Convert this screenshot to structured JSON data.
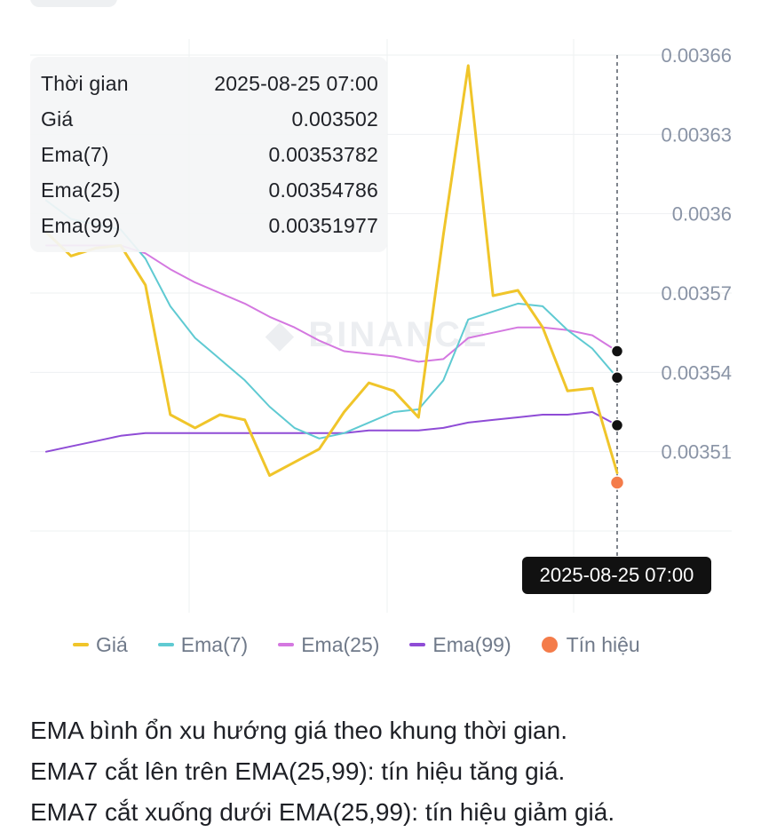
{
  "chart_data": {
    "type": "line",
    "y_ticks": [
      "0.00366",
      "0.00363",
      "0.0036",
      "0.00357",
      "0.00354",
      "0.00351"
    ],
    "ylim": [
      0.00348,
      0.00366
    ],
    "grid": true,
    "legend_position": "bottom",
    "watermark": "BINANCE",
    "crosshair_label": "2025-08-25 07:00",
    "series": [
      {
        "name": "Giá",
        "color": "#f0c52a",
        "values": [
          0.003593,
          0.003584,
          0.003587,
          0.003588,
          0.003573,
          0.003524,
          0.003519,
          0.003524,
          0.003522,
          0.003501,
          0.003506,
          0.003511,
          0.003525,
          0.003536,
          0.003533,
          0.003523,
          0.003592,
          0.003656,
          0.003569,
          0.003571,
          0.003557,
          0.003533,
          0.003534,
          0.003502
        ]
      },
      {
        "name": "Ema(7)",
        "color": "#5fcad2",
        "values": [
          0.003605,
          0.003598,
          0.003596,
          0.003594,
          0.003583,
          0.003565,
          0.003553,
          0.003545,
          0.003537,
          0.003527,
          0.003519,
          0.003515,
          0.003517,
          0.003521,
          0.003525,
          0.003526,
          0.003537,
          0.00356,
          0.003563,
          0.003566,
          0.003565,
          0.003556,
          0.003549,
          0.003538
        ]
      },
      {
        "name": "Ema(25)",
        "color": "#d478e0",
        "values": [
          0.003588,
          0.003588,
          0.003588,
          0.003588,
          0.003585,
          0.003579,
          0.003574,
          0.00357,
          0.003566,
          0.003561,
          0.003557,
          0.003552,
          0.003548,
          0.003547,
          0.003546,
          0.003544,
          0.003545,
          0.003553,
          0.003555,
          0.003557,
          0.003557,
          0.003556,
          0.003554,
          0.003548
        ]
      },
      {
        "name": "Ema(99)",
        "color": "#8f4cd6",
        "values": [
          0.00351,
          0.003512,
          0.003514,
          0.003516,
          0.003517,
          0.003517,
          0.003517,
          0.003517,
          0.003517,
          0.003517,
          0.003517,
          0.003517,
          0.003517,
          0.003518,
          0.003518,
          0.003518,
          0.003519,
          0.003521,
          0.003522,
          0.003523,
          0.003524,
          0.003524,
          0.003525,
          0.00352
        ]
      }
    ],
    "signal": {
      "name": "Tín hiệu",
      "color": "#f47c4a",
      "value": 0.003502
    }
  },
  "tooltip": {
    "rows": [
      {
        "label": "Thời gian",
        "value": "2025-08-25 07:00"
      },
      {
        "label": "Giá",
        "value": "0.003502"
      },
      {
        "label": "Ema(7)",
        "value": "0.00353782"
      },
      {
        "label": "Ema(25)",
        "value": "0.00354786"
      },
      {
        "label": "Ema(99)",
        "value": "0.00351977"
      }
    ]
  },
  "legend": [
    {
      "label": "Giá",
      "color": "#f0c52a",
      "kind": "line"
    },
    {
      "label": "Ema(7)",
      "color": "#5fcad2",
      "kind": "line"
    },
    {
      "label": "Ema(25)",
      "color": "#d478e0",
      "kind": "line"
    },
    {
      "label": "Ema(99)",
      "color": "#8f4cd6",
      "kind": "line"
    },
    {
      "label": "Tín hiệu",
      "color": "#f47c4a",
      "kind": "dot"
    }
  ],
  "notes": [
    "EMA bình ổn xu hướng giá theo khung thời gian.",
    "EMA7 cắt lên trên EMA(25,99): tín hiệu tăng giá.",
    "EMA7 cắt xuống dưới EMA(25,99): tín hiệu giảm giá."
  ]
}
